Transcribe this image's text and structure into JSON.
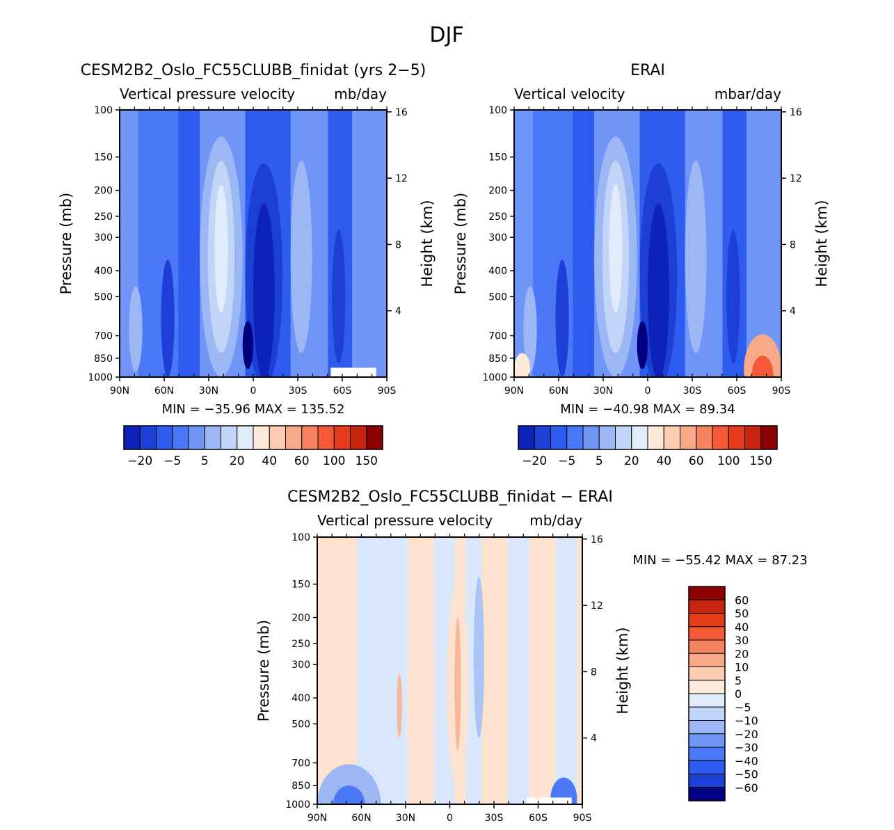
{
  "page_title": "DJF",
  "colors": {
    "blue_scale": [
      "#000080",
      "#0c22b8",
      "#1d3fd6",
      "#2f5cf0",
      "#4a78f6",
      "#6f96f7",
      "#9cb7f4",
      "#c2d5f6",
      "#e0ecfb"
    ],
    "red_scale": [
      "#fde9d9",
      "#fbcbb2",
      "#f8a988",
      "#f68460",
      "#f55a37",
      "#e63a1c",
      "#c82510",
      "#8b0000"
    ],
    "field_low": "#0a1f8f",
    "field_mid": "#4a78f6",
    "field_bg": "#4570f0",
    "diff_pos": "#fde3cf",
    "diff_neg": "#d9e7fb"
  },
  "chart_data": [
    {
      "type": "heatmap",
      "id": "model",
      "title": "CESM2B2_Oslo_FC55CLUBB_finidat (yrs 2−5)",
      "variable": "Vertical pressure velocity",
      "units": "mb/day",
      "ylabel": "Pressure (mb)",
      "y2label": "Height (km)",
      "x_ticks": [
        "90N",
        "60N",
        "30N",
        "0",
        "30S",
        "60S",
        "90S"
      ],
      "y_ticks": [
        "100",
        "150",
        "200",
        "250",
        "300",
        "400",
        "500",
        "700",
        "850",
        "1000"
      ],
      "y2_ticks": [
        "16",
        "12",
        "8",
        "4"
      ],
      "ylim": [
        1000,
        100
      ],
      "min_max_text": "MIN = −35.96   MAX = 135.52",
      "colorbar_labels": [
        "−20",
        "−5",
        "5",
        "20",
        "40",
        "60",
        "100",
        "150"
      ]
    },
    {
      "type": "heatmap",
      "id": "obs",
      "title": "ERAI",
      "variable": "Vertical velocity",
      "units": "mbar/day",
      "ylabel": "Pressure (mb)",
      "y2label": "Height (km)",
      "x_ticks": [
        "90N",
        "60N",
        "30N",
        "0",
        "30S",
        "60S",
        "90S"
      ],
      "y_ticks": [
        "100",
        "150",
        "200",
        "250",
        "300",
        "400",
        "500",
        "700",
        "850",
        "1000"
      ],
      "y2_ticks": [
        "16",
        "12",
        "8",
        "4"
      ],
      "ylim": [
        1000,
        100
      ],
      "min_max_text": "MIN = −40.98   MAX =  89.34",
      "colorbar_labels": [
        "−20",
        "−5",
        "5",
        "20",
        "40",
        "60",
        "100",
        "150"
      ]
    },
    {
      "type": "heatmap",
      "id": "diff",
      "title": "CESM2B2_Oslo_FC55CLUBB_finidat − ERAI",
      "variable": "Vertical pressure velocity",
      "units": "mb/day",
      "ylabel": "Pressure (mb)",
      "y2label": "Height (km)",
      "x_ticks": [
        "90N",
        "60N",
        "30N",
        "0",
        "30S",
        "60S",
        "90S"
      ],
      "y_ticks": [
        "100",
        "150",
        "200",
        "250",
        "300",
        "400",
        "500",
        "700",
        "850",
        "1000"
      ],
      "y2_ticks": [
        "16",
        "12",
        "8",
        "4"
      ],
      "ylim": [
        1000,
        100
      ],
      "min_max_text": "MIN = −55.42   MAX =  87.23",
      "colorbar_labels": [
        "60",
        "50",
        "40",
        "30",
        "20",
        "10",
        "5",
        "0",
        "−5",
        "−10",
        "−20",
        "−30",
        "−40",
        "−50",
        "−60"
      ]
    }
  ]
}
